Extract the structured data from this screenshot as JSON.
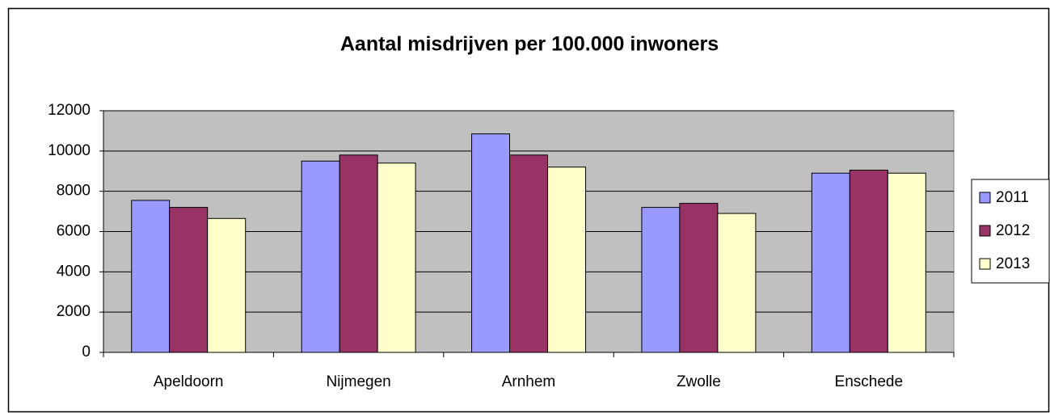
{
  "chart_data": {
    "type": "bar",
    "title": "Aantal misdrijven per 100.000 inwoners",
    "categories": [
      "Apeldoorn",
      "Nijmegen",
      "Arnhem",
      "Zwolle",
      "Enschede"
    ],
    "series": [
      {
        "name": "2011",
        "color": "#9999ff",
        "values": [
          7550,
          9500,
          10850,
          7200,
          8900
        ]
      },
      {
        "name": "2012",
        "color": "#993366",
        "values": [
          7200,
          9800,
          9800,
          7400,
          9050
        ]
      },
      {
        "name": "2013",
        "color": "#ffffcc",
        "values": [
          6650,
          9400,
          9200,
          6900,
          8900
        ]
      }
    ],
    "ylim": [
      0,
      12000
    ],
    "yticks": [
      0,
      2000,
      4000,
      6000,
      8000,
      10000,
      12000
    ],
    "grid": true,
    "legend": "right"
  }
}
